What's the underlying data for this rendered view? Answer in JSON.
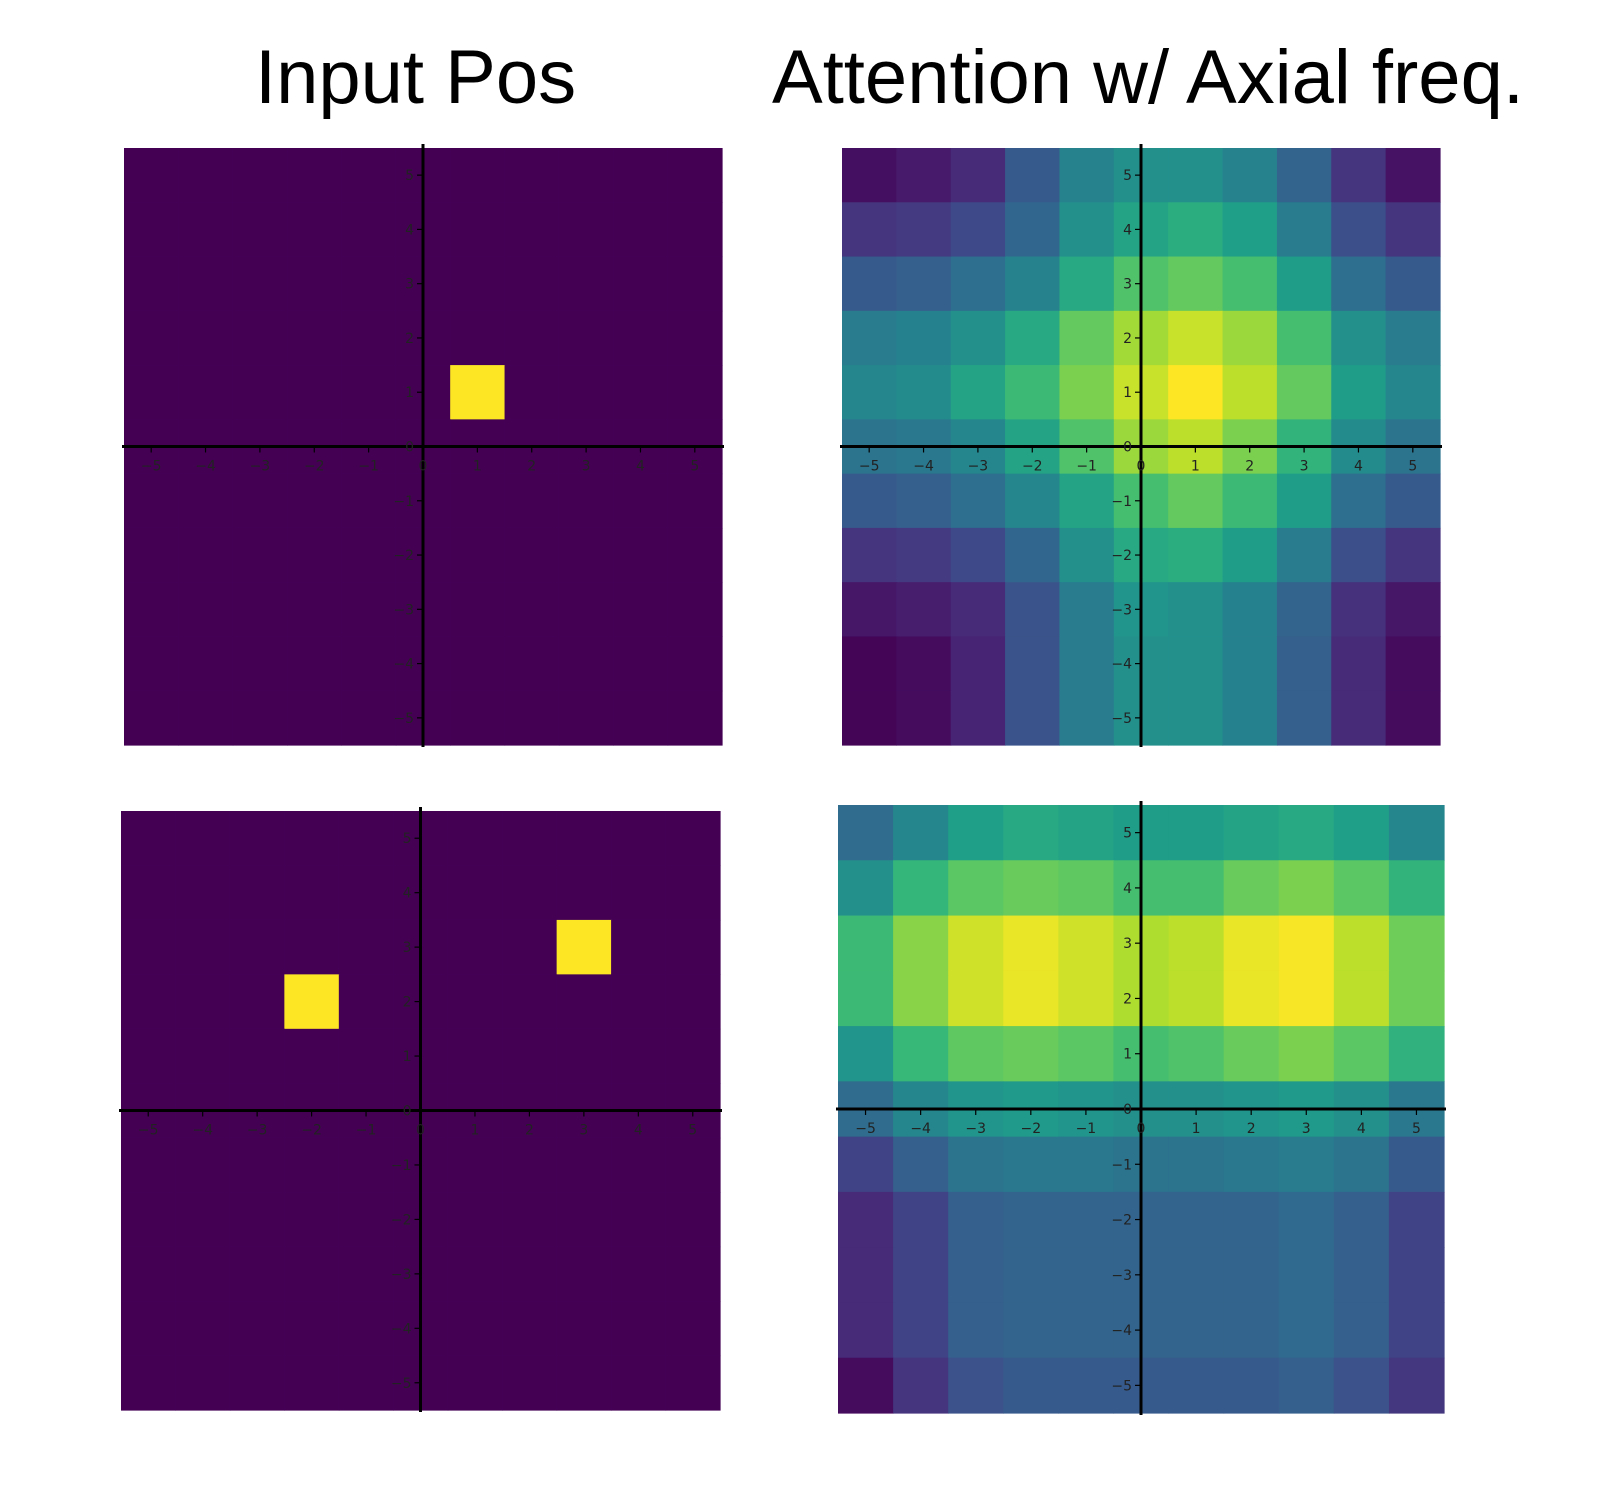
{
  "column_titles": [
    "Input Pos",
    "Attention w/ Axial freq."
  ],
  "chart_data": [
    {
      "type": "heatmap",
      "title": "",
      "grid_extent": [
        -5,
        5
      ],
      "colormap": "viridis",
      "value_range": [
        0,
        1
      ],
      "x_ticks": [
        -5,
        -4,
        -3,
        -2,
        -1,
        0,
        1,
        2,
        3,
        4,
        5
      ],
      "y_ticks": [
        -5,
        -4,
        -3,
        -2,
        -1,
        0,
        1,
        2,
        3,
        4,
        5
      ],
      "rows_y": [
        5,
        4,
        3,
        2,
        1,
        0,
        -1,
        -2,
        -3,
        -4,
        -5
      ],
      "cols_x": [
        -5,
        -4,
        -3,
        -2,
        -1,
        0,
        1,
        2,
        3,
        4,
        5
      ],
      "values": [
        [
          0,
          0,
          0,
          0,
          0,
          0,
          0,
          0,
          0,
          0,
          0
        ],
        [
          0,
          0,
          0,
          0,
          0,
          0,
          0,
          0,
          0,
          0,
          0
        ],
        [
          0,
          0,
          0,
          0,
          0,
          0,
          0,
          0,
          0,
          0,
          0
        ],
        [
          0,
          0,
          0,
          0,
          0,
          0,
          0,
          0,
          0,
          0,
          0
        ],
        [
          0,
          0,
          0,
          0,
          0,
          0,
          1,
          0,
          0,
          0,
          0
        ],
        [
          0,
          0,
          0,
          0,
          0,
          0,
          0,
          0,
          0,
          0,
          0
        ],
        [
          0,
          0,
          0,
          0,
          0,
          0,
          0,
          0,
          0,
          0,
          0
        ],
        [
          0,
          0,
          0,
          0,
          0,
          0,
          0,
          0,
          0,
          0,
          0
        ],
        [
          0,
          0,
          0,
          0,
          0,
          0,
          0,
          0,
          0,
          0,
          0
        ],
        [
          0,
          0,
          0,
          0,
          0,
          0,
          0,
          0,
          0,
          0,
          0
        ],
        [
          0,
          0,
          0,
          0,
          0,
          0,
          0,
          0,
          0,
          0,
          0
        ]
      ]
    },
    {
      "type": "heatmap",
      "title": "",
      "grid_extent": [
        -5,
        5
      ],
      "colormap": "viridis",
      "value_range": [
        0,
        1
      ],
      "x_ticks": [
        -5,
        -4,
        -3,
        -2,
        -1,
        0,
        1,
        2,
        3,
        4,
        5
      ],
      "y_ticks": [
        -5,
        -4,
        -3,
        -2,
        -1,
        0,
        1,
        2,
        3,
        4,
        5
      ],
      "rows_y": [
        5,
        4,
        3,
        2,
        1,
        0,
        -1,
        -2,
        -3,
        -4,
        -5
      ],
      "cols_x": [
        -5,
        -4,
        -3,
        -2,
        -1,
        0,
        1,
        2,
        3,
        4,
        5
      ],
      "values": [
        [
          0.04,
          0.07,
          0.12,
          0.28,
          0.45,
          0.5,
          0.5,
          0.45,
          0.32,
          0.15,
          0.05
        ],
        [
          0.15,
          0.17,
          0.22,
          0.33,
          0.5,
          0.58,
          0.62,
          0.56,
          0.42,
          0.24,
          0.15
        ],
        [
          0.28,
          0.3,
          0.36,
          0.45,
          0.6,
          0.72,
          0.76,
          0.7,
          0.55,
          0.36,
          0.28
        ],
        [
          0.42,
          0.44,
          0.5,
          0.6,
          0.76,
          0.86,
          0.92,
          0.85,
          0.7,
          0.5,
          0.42
        ],
        [
          0.46,
          0.48,
          0.58,
          0.68,
          0.8,
          0.92,
          1.0,
          0.9,
          0.76,
          0.55,
          0.46
        ],
        [
          0.38,
          0.4,
          0.46,
          0.58,
          0.72,
          0.85,
          0.9,
          0.8,
          0.65,
          0.48,
          0.38
        ],
        [
          0.28,
          0.3,
          0.36,
          0.46,
          0.58,
          0.7,
          0.76,
          0.68,
          0.55,
          0.36,
          0.28
        ],
        [
          0.15,
          0.17,
          0.22,
          0.33,
          0.5,
          0.6,
          0.62,
          0.55,
          0.42,
          0.24,
          0.15
        ],
        [
          0.06,
          0.08,
          0.12,
          0.26,
          0.42,
          0.52,
          0.5,
          0.44,
          0.32,
          0.14,
          0.06
        ],
        [
          0.01,
          0.03,
          0.1,
          0.26,
          0.42,
          0.5,
          0.5,
          0.44,
          0.3,
          0.12,
          0.03
        ],
        [
          0.01,
          0.03,
          0.1,
          0.26,
          0.42,
          0.5,
          0.5,
          0.44,
          0.3,
          0.12,
          0.03
        ]
      ]
    },
    {
      "type": "heatmap",
      "title": "",
      "grid_extent": [
        -5,
        5
      ],
      "colormap": "viridis",
      "value_range": [
        0,
        1
      ],
      "x_ticks": [
        -5,
        -4,
        -3,
        -2,
        -1,
        0,
        1,
        2,
        3,
        4,
        5
      ],
      "y_ticks": [
        -5,
        -4,
        -3,
        -2,
        -1,
        0,
        1,
        2,
        3,
        4,
        5
      ],
      "rows_y": [
        5,
        4,
        3,
        2,
        1,
        0,
        -1,
        -2,
        -3,
        -4,
        -5
      ],
      "cols_x": [
        -5,
        -4,
        -3,
        -2,
        -1,
        0,
        1,
        2,
        3,
        4,
        5
      ],
      "values": [
        [
          0,
          0,
          0,
          0,
          0,
          0,
          0,
          0,
          0,
          0,
          0
        ],
        [
          0,
          0,
          0,
          0,
          0,
          0,
          0,
          0,
          0,
          0,
          0
        ],
        [
          0,
          0,
          0,
          0,
          0,
          0,
          0,
          0,
          1,
          0,
          0
        ],
        [
          0,
          0,
          0,
          1,
          0,
          0,
          0,
          0,
          0,
          0,
          0
        ],
        [
          0,
          0,
          0,
          0,
          0,
          0,
          0,
          0,
          0,
          0,
          0
        ],
        [
          0,
          0,
          0,
          0,
          0,
          0,
          0,
          0,
          0,
          0,
          0
        ],
        [
          0,
          0,
          0,
          0,
          0,
          0,
          0,
          0,
          0,
          0,
          0
        ],
        [
          0,
          0,
          0,
          0,
          0,
          0,
          0,
          0,
          0,
          0,
          0
        ],
        [
          0,
          0,
          0,
          0,
          0,
          0,
          0,
          0,
          0,
          0,
          0
        ],
        [
          0,
          0,
          0,
          0,
          0,
          0,
          0,
          0,
          0,
          0,
          0
        ],
        [
          0,
          0,
          0,
          0,
          0,
          0,
          0,
          0,
          0,
          0,
          0
        ]
      ]
    },
    {
      "type": "heatmap",
      "title": "",
      "grid_extent": [
        -5,
        5
      ],
      "colormap": "viridis",
      "value_range": [
        0,
        1
      ],
      "x_ticks": [
        -5,
        -4,
        -3,
        -2,
        -1,
        0,
        1,
        2,
        3,
        4,
        5
      ],
      "y_ticks": [
        -5,
        -4,
        -3,
        -2,
        -1,
        0,
        1,
        2,
        3,
        4,
        5
      ],
      "rows_y": [
        5,
        4,
        3,
        2,
        1,
        0,
        -1,
        -2,
        -3,
        -4,
        -5
      ],
      "cols_x": [
        -5,
        -4,
        -3,
        -2,
        -1,
        0,
        1,
        2,
        3,
        4,
        5
      ],
      "values": [
        [
          0.35,
          0.46,
          0.56,
          0.6,
          0.58,
          0.55,
          0.55,
          0.58,
          0.6,
          0.56,
          0.46
        ],
        [
          0.5,
          0.66,
          0.74,
          0.77,
          0.75,
          0.7,
          0.7,
          0.77,
          0.8,
          0.74,
          0.65
        ],
        [
          0.68,
          0.82,
          0.93,
          0.97,
          0.93,
          0.88,
          0.9,
          0.97,
          0.99,
          0.9,
          0.78
        ],
        [
          0.68,
          0.82,
          0.93,
          0.97,
          0.93,
          0.88,
          0.9,
          0.97,
          0.99,
          0.9,
          0.78
        ],
        [
          0.52,
          0.67,
          0.75,
          0.77,
          0.74,
          0.7,
          0.72,
          0.77,
          0.8,
          0.74,
          0.64
        ],
        [
          0.35,
          0.46,
          0.52,
          0.54,
          0.52,
          0.5,
          0.5,
          0.52,
          0.54,
          0.5,
          0.4
        ],
        [
          0.2,
          0.3,
          0.38,
          0.4,
          0.4,
          0.38,
          0.38,
          0.4,
          0.42,
          0.38,
          0.28
        ],
        [
          0.12,
          0.2,
          0.3,
          0.32,
          0.32,
          0.32,
          0.32,
          0.32,
          0.34,
          0.3,
          0.2
        ],
        [
          0.12,
          0.2,
          0.3,
          0.32,
          0.32,
          0.32,
          0.32,
          0.32,
          0.34,
          0.3,
          0.2
        ],
        [
          0.12,
          0.2,
          0.3,
          0.32,
          0.32,
          0.32,
          0.32,
          0.32,
          0.34,
          0.3,
          0.2
        ],
        [
          0.03,
          0.15,
          0.25,
          0.28,
          0.28,
          0.28,
          0.28,
          0.28,
          0.3,
          0.25,
          0.16
        ]
      ]
    }
  ]
}
